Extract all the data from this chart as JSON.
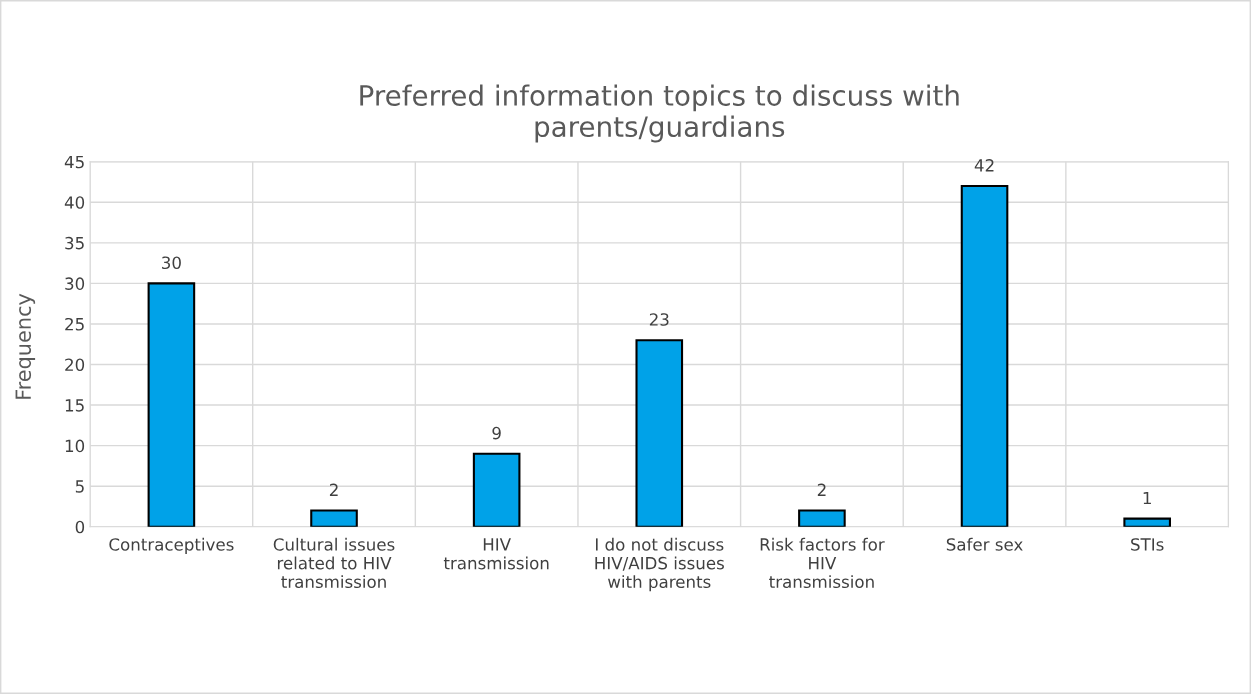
{
  "chart_data": {
    "type": "bar",
    "title": "Preferred information topics to discuss with\nparents/guardians",
    "ylabel": "Frequency",
    "categories": [
      "Contraceptives",
      "Cultural issues\nrelated to HIV\ntransmission",
      "HIV\ntransmission",
      "I do not discuss\nHIV/AIDS issues\nwith parents",
      "Risk factors for\nHIV\ntransmission",
      "Safer sex",
      "STIs"
    ],
    "values": [
      30,
      2,
      9,
      23,
      2,
      42,
      1
    ],
    "color": "#00a2e8",
    "ylim": [
      0,
      45
    ],
    "yticks": [
      0,
      5,
      10,
      15,
      20,
      25,
      30,
      35,
      40,
      45
    ],
    "grid": true,
    "data_labels": true
  }
}
